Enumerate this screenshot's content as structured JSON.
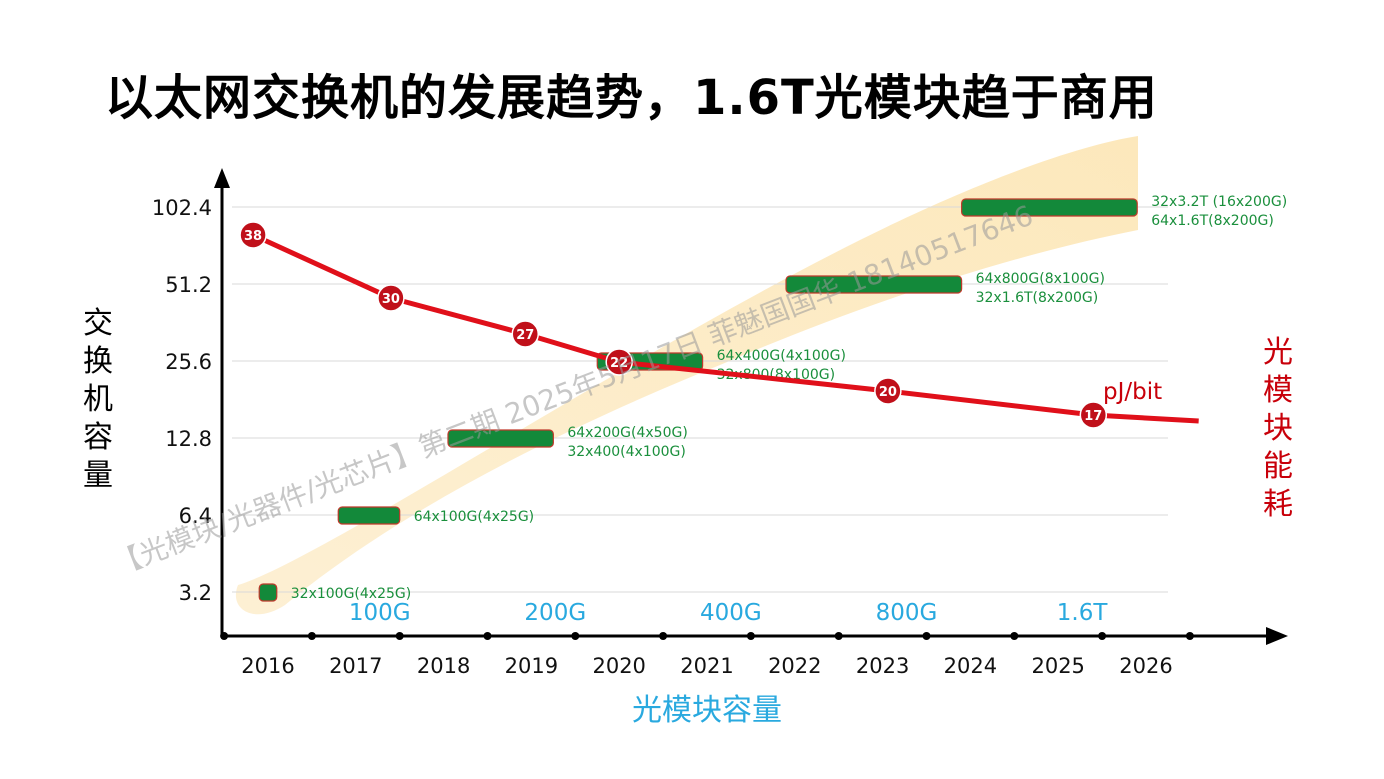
{
  "title": "以太网交换机的发展趋势，1.6T光模块趋于商用",
  "chart_data": {
    "type": "mixed-bar-line",
    "x_label": "光模块容量",
    "y_label_left": "交换机容量",
    "y_label_right": "光模块能耗",
    "x_ticks": [
      "2016",
      "2017",
      "2018",
      "2019",
      "2020",
      "2021",
      "2022",
      "2023",
      "2024",
      "2025",
      "2026"
    ],
    "y_ticks": [
      "3.2",
      "6.4",
      "12.8",
      "25.6",
      "51.2",
      "102.4"
    ],
    "y_values": [
      3.2,
      6.4,
      12.8,
      25.6,
      51.2,
      102.4
    ],
    "y_scale": "log2",
    "grid": true,
    "generations": [
      {
        "label": "100G",
        "x": 2017.5
      },
      {
        "label": "200G",
        "x": 2019.5
      },
      {
        "label": "400G",
        "x": 2021.5
      },
      {
        "label": "800G",
        "x": 2023.5
      },
      {
        "label": "1.6T",
        "x": 2025.5
      }
    ],
    "switch_capacity": [
      {
        "x_start": 2015.9,
        "x_end": 2016.1,
        "y": 3.2,
        "configs": [
          "32x100G(4x25G)"
        ]
      },
      {
        "x_start": 2016.8,
        "x_end": 2017.5,
        "y": 6.4,
        "configs": [
          "64x100G(4x25G)"
        ]
      },
      {
        "x_start": 2018.05,
        "x_end": 2019.25,
        "y": 12.8,
        "configs": [
          "64x200G(4x50G)",
          "32x400(4x100G)"
        ]
      },
      {
        "x_start": 2019.75,
        "x_end": 2020.95,
        "y": 25.6,
        "configs": [
          "64x400G(4x100G)",
          "32x800(8x100G)"
        ]
      },
      {
        "x_start": 2021.9,
        "x_end": 2023.9,
        "y": 51.2,
        "configs": [
          "64x800G(8x100G)",
          "32x1.6T(8x200G)"
        ]
      },
      {
        "x_start": 2023.9,
        "x_end": 2025.9,
        "y": 102.4,
        "configs": [
          "32x3.2T  (16x200G)",
          "64x1.6T(8x200G)"
        ]
      }
    ],
    "power": {
      "unit": "pJ/bit",
      "points": [
        {
          "x": 2015.83,
          "value": 38
        },
        {
          "x": 2017.4,
          "value": 30
        },
        {
          "x": 2018.93,
          "value": 27
        },
        {
          "x": 2020.0,
          "value": 22
        },
        {
          "x": 2023.06,
          "value": 20
        },
        {
          "x": 2025.4,
          "value": 17
        }
      ]
    },
    "watermark": [
      "【光模块/光器件/光芯片】第二期  2025年5月17日  菲魅国国华 18140517646"
    ]
  }
}
